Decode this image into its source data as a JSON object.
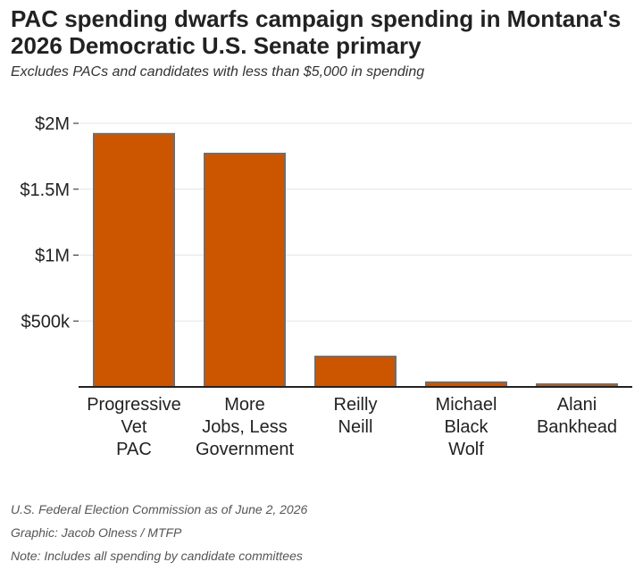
{
  "title": "PAC spending dwarfs campaign spending in Montana's 2026 Democratic U.S. Senate primary",
  "subtitle": "Excludes PACs and candidates with less than $5,000 in spending",
  "footer": {
    "source": "U.S. Federal Election Commission as of June 2, 2026",
    "graphic": "Graphic: Jacob Olness / MTFP",
    "note": "Note: Includes all spending by candidate committees"
  },
  "colors": {
    "bar": "#cc5500",
    "bar_outline": "#6e6e6e",
    "axis": "#222222",
    "grid": "#e6e6e6"
  },
  "chart_data": {
    "type": "bar",
    "categories": [
      [
        "Progressive",
        "Vet",
        "PAC"
      ],
      [
        "More",
        "Jobs, Less",
        "Government"
      ],
      [
        "Reilly",
        "Neill"
      ],
      [
        "Michael",
        "Black",
        "Wolf"
      ],
      [
        "Alani",
        "Bankhead"
      ]
    ],
    "values": [
      1920000,
      1770000,
      230000,
      35000,
      20000
    ],
    "ylim": [
      0,
      2000000
    ],
    "yticks": [
      500000,
      1000000,
      1500000,
      2000000
    ],
    "ytick_labels": [
      "$500k",
      "$1M",
      "$1.5M",
      "$2M"
    ],
    "grid": true,
    "xlabel": "",
    "ylabel": ""
  }
}
